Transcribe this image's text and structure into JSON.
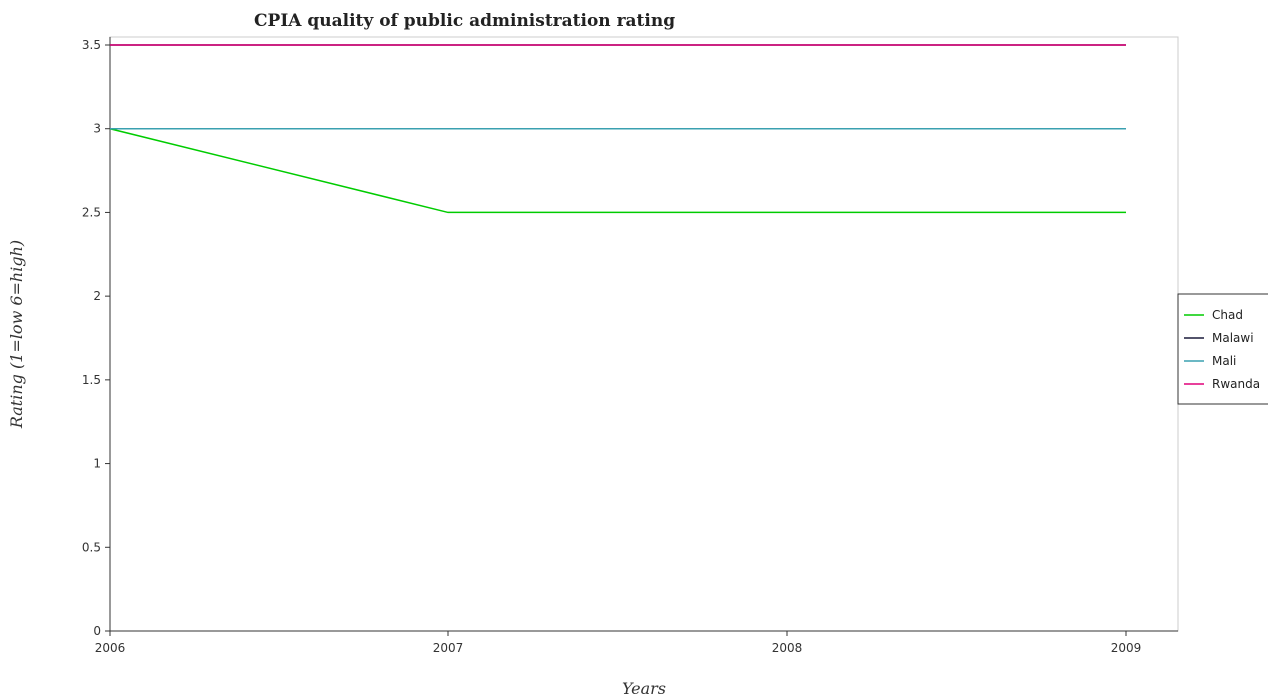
{
  "chart_data": {
    "type": "line",
    "title": "CPIA quality of public administration rating",
    "xlabel": "Years",
    "ylabel": "Rating (1=low 6=high)",
    "x": [
      "2006",
      "2007",
      "2008",
      "2009"
    ],
    "ylim": [
      0,
      3.5
    ],
    "yticks": [
      0,
      0.5,
      1,
      1.5,
      2,
      2.5,
      3,
      3.5
    ],
    "ytick_labels": [
      "0",
      "0.5",
      "1",
      "1.5",
      "2",
      "2.5",
      "3",
      "3.5"
    ],
    "grid": false,
    "legend_position": "right",
    "series": [
      {
        "name": "Chad",
        "color": "#00cc00",
        "values": [
          3.0,
          2.5,
          2.5,
          2.5
        ]
      },
      {
        "name": "Malawi",
        "color": "#1a1a3a",
        "values": [
          3.5,
          3.5,
          3.5,
          3.5
        ]
      },
      {
        "name": "Mali",
        "color": "#3aa0b0",
        "values": [
          3.0,
          3.0,
          3.0,
          3.0
        ]
      },
      {
        "name": "Rwanda",
        "color": "#e0007a",
        "values": [
          3.5,
          3.5,
          3.5,
          3.5
        ]
      }
    ]
  }
}
